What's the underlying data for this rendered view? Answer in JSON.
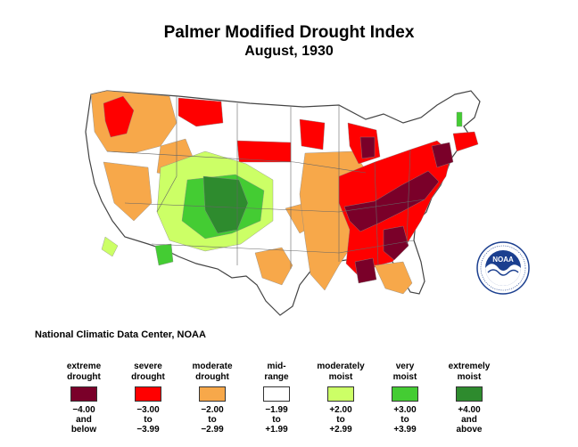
{
  "header": {
    "title": "Palmer Modified Drought Index",
    "subtitle": "August, 1930"
  },
  "credit": "National Climatic Data Center, NOAA",
  "logo": {
    "text": "NOAA",
    "ring_text": "NATIONAL OCEANIC AND ATMOSPHERIC ADMINISTRATION · U.S. DEPARTMENT OF COMMERCE",
    "icon": "noaa-logo"
  },
  "legend": [
    {
      "label_1": "extreme",
      "label_2": "drought",
      "color": "#7a0029",
      "range_1": "−4.00",
      "range_2": "and",
      "range_3": "below"
    },
    {
      "label_1": "severe",
      "label_2": "drought",
      "color": "#ff0000",
      "range_1": "−3.00",
      "range_2": "to",
      "range_3": "−3.99"
    },
    {
      "label_1": "moderate",
      "label_2": "drought",
      "color": "#f7a84a",
      "range_1": "−2.00",
      "range_2": "to",
      "range_3": "−2.99"
    },
    {
      "label_1": "mid-",
      "label_2": "range",
      "color": "#ffffff",
      "range_1": "−1.99",
      "range_2": "to",
      "range_3": "+1.99"
    },
    {
      "label_1": "moderately",
      "label_2": "moist",
      "color": "#ccff66",
      "range_1": "+2.00",
      "range_2": "to",
      "range_3": "+2.99"
    },
    {
      "label_1": "very",
      "label_2": "moist",
      "color": "#44cc33",
      "range_1": "+3.00",
      "range_2": "to",
      "range_3": "+3.99"
    },
    {
      "label_1": "extremely",
      "label_2": "moist",
      "color": "#2e8b2e",
      "range_1": "+4.00",
      "range_2": "and",
      "range_3": "above"
    }
  ]
}
